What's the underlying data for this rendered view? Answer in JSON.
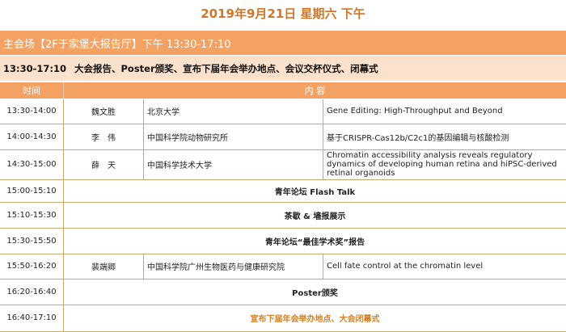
{
  "title": "2019年9月21日 星期六 下午",
  "venue": "主会场【2F于家堡大报告厅】下午 13:30-17:10",
  "session": {
    "time": "13:30-17:10",
    "desc": "大会报告、Poster颁奖、宣布下届年会举办地点、会议交杯仪式、闭幕式"
  },
  "header": {
    "time": "时间",
    "content": "内 容"
  },
  "rows": [
    {
      "time": "13:30-14:00",
      "speaker": "魏文胜",
      "affil": "北京大学",
      "talk": "Gene Editing: High-Throughput and Beyond"
    },
    {
      "time": "14:00-14:30",
      "speaker": "李　伟",
      "affil": "中国科学院动物研究所",
      "talk": "基于CRISPR-Cas12b/C2c1的基因编辑与核酸检测"
    },
    {
      "time": "14:30-15:00",
      "speaker": "薛　天",
      "affil": "中国科学技术大学",
      "talk": "Chromatin accessibility analysis reveals regulatory dynamics of developing human retina and hiPSC-derived retinal organoids"
    },
    {
      "time": "15:00-15:10",
      "event": "青年论坛 Flash Talk"
    },
    {
      "time": "15:10-15:30",
      "event": "茶歇 & 墙报展示"
    },
    {
      "time": "15:30-15:50",
      "event": "青年论坛“最佳学术奖”报告"
    },
    {
      "time": "15:50-16:20",
      "speaker": "裴端卿",
      "affil": "中国科学院广州生物医药与健康研究院",
      "talk": "Cell fate control at the chromatin level"
    },
    {
      "time": "16:20-16:40",
      "event": "Poster颁奖"
    },
    {
      "time": "16:40-17:10",
      "event": "宣布下届年会举办地点、大会闭幕式"
    }
  ],
  "colors": {
    "accent": "#f3a263",
    "title": "#d2772a",
    "peach": "#fce2cd",
    "border": "#c9a96e"
  }
}
